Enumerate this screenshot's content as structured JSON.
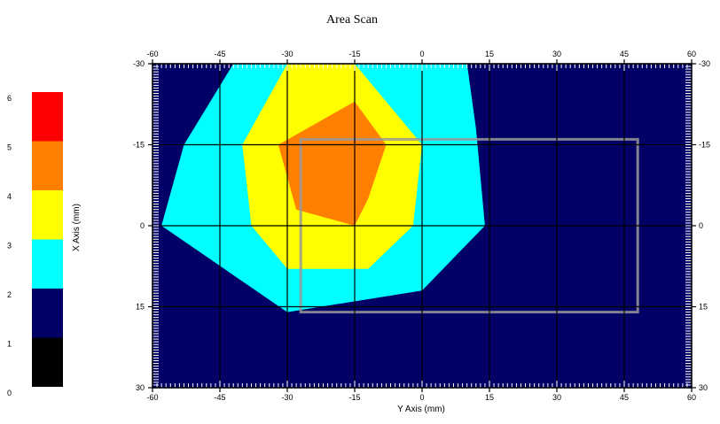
{
  "chart_data": {
    "type": "heatmap",
    "title": "Area Scan",
    "xlabel": "Y Axis (mm)",
    "ylabel": "X Axis (mm)",
    "x_range": [
      -60,
      60
    ],
    "y_range": [
      -30,
      30
    ],
    "x_ticks": [
      -60,
      -45,
      -30,
      -15,
      0,
      15,
      30,
      45,
      60
    ],
    "y_ticks": [
      -30,
      -15,
      0,
      15,
      30
    ],
    "x_tick_labels": [
      "-60",
      "-45",
      "-30",
      "-15",
      "0",
      "15",
      "30",
      "45",
      "60"
    ],
    "y_tick_labels": [
      "-30",
      "-15",
      "0",
      "15",
      "30"
    ],
    "grid": true,
    "colorbar": {
      "position": "left",
      "labels": [
        "0",
        "1",
        "2",
        "3",
        "4",
        "5",
        "6"
      ],
      "levels": [
        {
          "from": 0,
          "to": 1,
          "color": "#000000"
        },
        {
          "from": 1,
          "to": 2,
          "color": "#000066"
        },
        {
          "from": 2,
          "to": 3,
          "color": "#00ffff"
        },
        {
          "from": 3,
          "to": 4,
          "color": "#ffff00"
        },
        {
          "from": 4,
          "to": 5,
          "color": "#ff8000"
        },
        {
          "from": 5,
          "to": 6,
          "color": "#ff0000"
        }
      ]
    },
    "background_color": "#000066",
    "contours": [
      {
        "level": 2,
        "color": "#00ffff",
        "points": [
          [
            -42,
            -30
          ],
          [
            10,
            -30
          ],
          [
            12,
            -18
          ],
          [
            14,
            0
          ],
          [
            0,
            12
          ],
          [
            -30,
            16
          ],
          [
            -58,
            0
          ],
          [
            -53,
            -15
          ]
        ]
      },
      {
        "level": 3,
        "color": "#ffff00",
        "points": [
          [
            -30,
            -30
          ],
          [
            -15,
            -30
          ],
          [
            0,
            -15
          ],
          [
            -2,
            0
          ],
          [
            -12,
            8
          ],
          [
            -30,
            8
          ],
          [
            -38,
            0
          ],
          [
            -40,
            -15
          ]
        ]
      },
      {
        "level": 4,
        "color": "#ff8000",
        "points": [
          [
            -15,
            -23
          ],
          [
            -8,
            -15
          ],
          [
            -12,
            -5
          ],
          [
            -15,
            0
          ],
          [
            -28,
            -3
          ],
          [
            -32,
            -15
          ]
        ]
      }
    ],
    "highlight_box": {
      "x": [
        -27,
        48
      ],
      "y": [
        -16,
        16
      ],
      "color": "#999999"
    }
  }
}
